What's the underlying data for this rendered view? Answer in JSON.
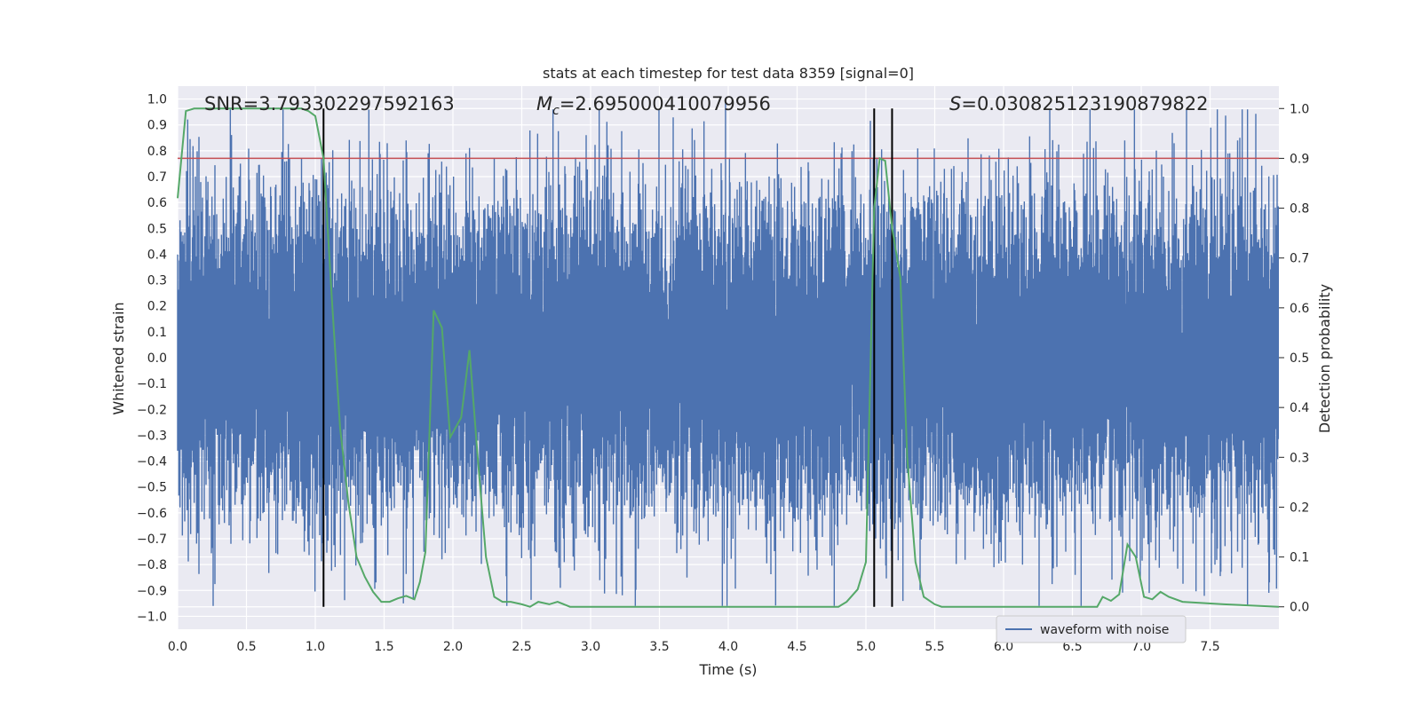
{
  "chart_data": {
    "type": "line",
    "title": "stats at each timestep for test data 8359 [signal=0]",
    "xlabel": "Time (s)",
    "ylabel": "Whitened strain",
    "y2label": "Detection probability",
    "xlim": [
      0.0,
      8.0
    ],
    "ylim": [
      -1.05,
      1.05
    ],
    "y2lim": [
      -0.045,
      1.045
    ],
    "xticks": [
      0.0,
      0.5,
      1.0,
      1.5,
      2.0,
      2.5,
      3.0,
      3.5,
      4.0,
      4.5,
      5.0,
      5.5,
      6.0,
      6.5,
      7.0,
      7.5
    ],
    "xtick_labels": [
      "0.0",
      "0.5",
      "1.0",
      "1.5",
      "2.0",
      "2.5",
      "3.0",
      "3.5",
      "4.0",
      "4.5",
      "5.0",
      "5.5",
      "6.0",
      "6.5",
      "7.0",
      "7.5"
    ],
    "yticks": [
      1.0,
      0.9,
      0.8,
      0.7,
      0.6,
      0.5,
      0.4,
      0.3,
      0.2,
      0.1,
      0.0,
      -0.1,
      -0.2,
      -0.3,
      -0.4,
      -0.5,
      -0.6,
      -0.7,
      -0.8,
      -0.9,
      -1.0
    ],
    "ytick_labels": [
      "1.0",
      "0.9",
      "0.8",
      "0.7",
      "0.6",
      "0.5",
      "0.4",
      "0.3",
      "0.2",
      "0.1",
      "0.0",
      "-0.1",
      "-0.2",
      "-0.3",
      "-0.4",
      "-0.5",
      "-0.6",
      "-0.7",
      "-0.8",
      "-0.9",
      "-1.0"
    ],
    "y2ticks": [
      1.0,
      0.9,
      0.8,
      0.7,
      0.6,
      0.5,
      0.4,
      0.3,
      0.2,
      0.1,
      0.0
    ],
    "y2tick_labels": [
      "1.0",
      "0.9",
      "0.8",
      "0.7",
      "0.6",
      "0.5",
      "0.4",
      "0.3",
      "0.2",
      "0.1",
      "0.0"
    ],
    "grid": true,
    "legend": {
      "placement": "lower-right",
      "entries": [
        "waveform with noise"
      ]
    },
    "annotations": {
      "snr": "SNR=3.793302297592163",
      "mc_symbol": "M",
      "mc_sub": "c",
      "mc_value": "=2.695000410079956",
      "s_symbol": "S",
      "s_value": "=0.030825123190879822"
    },
    "threshold": {
      "y2": 0.9,
      "color": "#c44e52"
    },
    "vertical_lines": [
      1.06,
      5.06,
      5.19
    ],
    "colors": {
      "waveform": "#4c72b0",
      "probability": "#55a868",
      "threshold": "#c44e52",
      "vlines": "#000000",
      "plot_bg": "#eaeaf2"
    },
    "series": [
      {
        "name": "waveform with noise",
        "axis": "left",
        "kind": "noise-band",
        "sample_rate": 2048,
        "duration": 8.0,
        "seed": 8359,
        "amplitude_std": 0.3,
        "peaks": [
          {
            "x": 0.07,
            "y": 0.72
          },
          {
            "x": 0.22,
            "y": 0.68
          },
          {
            "x": 0.9,
            "y": 0.77
          },
          {
            "x": 1.66,
            "y": 0.84
          },
          {
            "x": 1.64,
            "y": -0.95
          },
          {
            "x": 1.82,
            "y": 0.79
          },
          {
            "x": 1.92,
            "y": -0.78
          },
          {
            "x": 2.3,
            "y": 0.77
          },
          {
            "x": 2.78,
            "y": -0.89
          },
          {
            "x": 3.7,
            "y": -0.85
          },
          {
            "x": 3.88,
            "y": 0.73
          },
          {
            "x": 3.98,
            "y": 0.99
          },
          {
            "x": 4.82,
            "y": 0.79
          },
          {
            "x": 5.57,
            "y": 0.73
          },
          {
            "x": 5.93,
            "y": -0.81
          },
          {
            "x": 6.52,
            "y": -0.84
          },
          {
            "x": 6.88,
            "y": 0.84
          },
          {
            "x": 7.7,
            "y": 0.84
          },
          {
            "x": 7.7,
            "y": -0.75
          },
          {
            "x": 0.92,
            "y": -0.75
          },
          {
            "x": 1.0,
            "y": 0.69
          }
        ]
      },
      {
        "name": "",
        "axis": "right",
        "kind": "line",
        "x": [
          0.0,
          0.06,
          0.12,
          0.2,
          0.3,
          0.4,
          0.5,
          0.6,
          0.7,
          0.8,
          0.9,
          0.95,
          1.0,
          1.06,
          1.12,
          1.18,
          1.24,
          1.3,
          1.36,
          1.42,
          1.48,
          1.54,
          1.6,
          1.66,
          1.72,
          1.76,
          1.8,
          1.86,
          1.92,
          1.98,
          2.06,
          2.12,
          2.18,
          2.24,
          2.3,
          2.36,
          2.42,
          2.5,
          2.56,
          2.62,
          2.7,
          2.76,
          2.85,
          3.0,
          3.2,
          3.4,
          3.6,
          3.7,
          3.85,
          4.0,
          4.2,
          4.4,
          4.6,
          4.7,
          4.8,
          4.86,
          4.94,
          5.0,
          5.06,
          5.1,
          5.14,
          5.19,
          5.25,
          5.3,
          5.36,
          5.42,
          5.5,
          5.55,
          5.6,
          5.7,
          6.0,
          6.2,
          6.4,
          6.5,
          6.56,
          6.62,
          6.68,
          6.72,
          6.78,
          6.84,
          6.9,
          6.96,
          7.02,
          7.08,
          7.14,
          7.2,
          7.3,
          7.6,
          8.0
        ],
        "y": [
          0.82,
          0.995,
          1.0,
          1.0,
          1.0,
          1.0,
          1.0,
          1.0,
          1.0,
          1.0,
          1.0,
          0.995,
          0.985,
          0.9,
          0.62,
          0.36,
          0.21,
          0.1,
          0.06,
          0.03,
          0.01,
          0.01,
          0.017,
          0.022,
          0.015,
          0.05,
          0.11,
          0.595,
          0.56,
          0.34,
          0.38,
          0.515,
          0.3,
          0.1,
          0.02,
          0.01,
          0.01,
          0.005,
          0.0,
          0.01,
          0.005,
          0.01,
          0.0,
          0.0,
          0.0,
          0.0,
          0.0,
          0.0,
          0.0,
          0.0,
          0.0,
          0.0,
          0.0,
          0.0,
          0.0,
          0.01,
          0.035,
          0.09,
          0.8,
          0.9,
          0.895,
          0.76,
          0.66,
          0.3,
          0.09,
          0.02,
          0.005,
          0.0,
          0.0,
          0.0,
          0.0,
          0.0,
          0.0,
          0.0,
          0.0,
          0.0,
          0.0,
          0.02,
          0.012,
          0.025,
          0.125,
          0.1,
          0.02,
          0.015,
          0.03,
          0.02,
          0.01,
          0.005,
          0.0
        ]
      }
    ]
  }
}
